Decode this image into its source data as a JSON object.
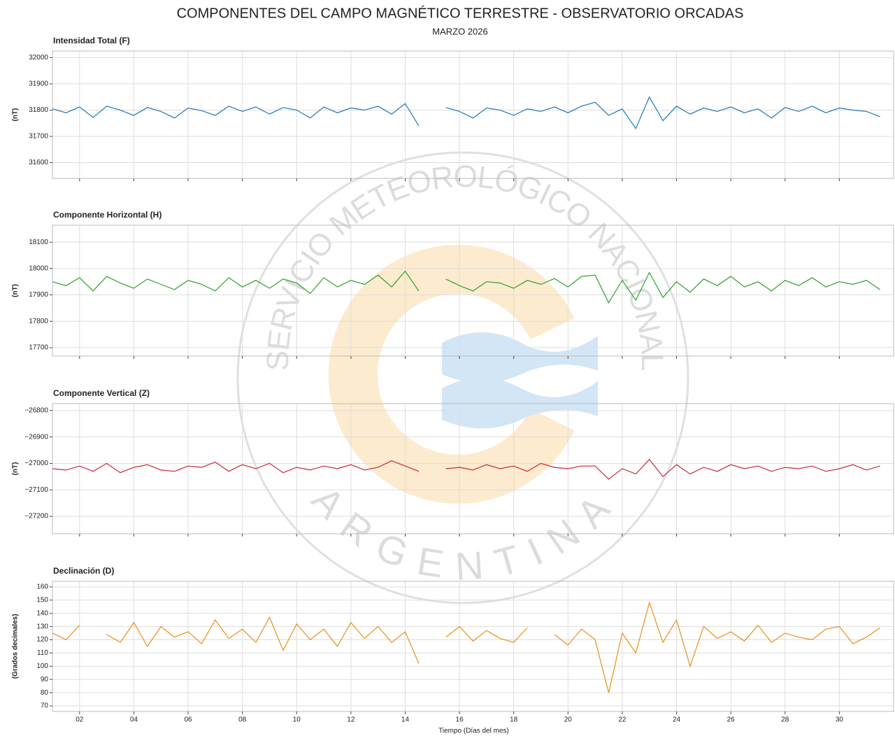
{
  "figure": {
    "title": "COMPONENTES DEL CAMPO MAGNÉTICO TERRESTRE - OBSERVATORIO ORCADAS",
    "subtitle": "MARZO 2026"
  },
  "watermark": {
    "top": "SERVICIO METEOROLÓGICO NACIONAL",
    "bottom": "ARGENTINA"
  },
  "chart_data": [
    {
      "type": "line",
      "title": "Intensidad Total (F)",
      "ylabel": "(nT)",
      "color": "#1f77b4",
      "grid": true,
      "x": [
        1,
        1.5,
        2,
        2.5,
        3,
        3.5,
        4,
        4.5,
        5,
        5.5,
        6,
        6.5,
        7,
        7.5,
        8,
        8.5,
        9,
        9.5,
        10,
        10.5,
        11,
        11.5,
        12,
        12.5,
        13,
        13.5,
        14,
        14.5,
        15,
        15.5,
        16,
        16.5,
        17,
        17.5,
        18,
        18.5,
        19,
        19.5,
        20,
        20.5,
        21,
        21.5,
        22,
        22.5,
        23,
        23.5,
        24,
        24.5,
        25,
        25.5,
        26,
        26.5,
        27,
        27.5,
        28,
        28.5,
        29,
        29.5,
        30,
        30.5,
        31,
        31.5
      ],
      "values": [
        31805,
        31790,
        31812,
        31772,
        31815,
        31800,
        31780,
        31810,
        31795,
        31770,
        31808,
        31798,
        31780,
        31815,
        31795,
        31812,
        31785,
        31810,
        31800,
        31770,
        31812,
        31790,
        31808,
        31800,
        31815,
        31785,
        31825,
        31740,
        null,
        31810,
        31795,
        31770,
        31808,
        31800,
        31780,
        31805,
        31795,
        31812,
        31790,
        31815,
        31830,
        31780,
        31805,
        31730,
        31850,
        31760,
        31815,
        31785,
        31808,
        31795,
        31812,
        31790,
        31805,
        31770,
        31810,
        31795,
        31815,
        31790,
        31808,
        31800,
        31795,
        31775
      ],
      "xlim": [
        1,
        32
      ],
      "ylim": [
        31540,
        32025
      ],
      "yticks": [
        31600,
        31700,
        31800,
        31900,
        32000
      ]
    },
    {
      "type": "line",
      "title": "Componente Horizontal (H)",
      "ylabel": "(nT)",
      "color": "#2ca02c",
      "grid": true,
      "x": [
        1,
        1.5,
        2,
        2.5,
        3,
        3.5,
        4,
        4.5,
        5,
        5.5,
        6,
        6.5,
        7,
        7.5,
        8,
        8.5,
        9,
        9.5,
        10,
        10.5,
        11,
        11.5,
        12,
        12.5,
        13,
        13.5,
        14,
        14.5,
        15,
        15.5,
        16,
        16.5,
        17,
        17.5,
        18,
        18.5,
        19,
        19.5,
        20,
        20.5,
        21,
        21.5,
        22,
        22.5,
        23,
        23.5,
        24,
        24.5,
        25,
        25.5,
        26,
        26.5,
        27,
        27.5,
        28,
        28.5,
        29,
        29.5,
        30,
        30.5,
        31,
        31.5
      ],
      "values": [
        17950,
        17935,
        17965,
        17915,
        17970,
        17945,
        17925,
        17960,
        17940,
        17920,
        17955,
        17940,
        17915,
        17965,
        17930,
        17955,
        17925,
        17960,
        17945,
        17905,
        17965,
        17930,
        17955,
        17940,
        17975,
        17930,
        17990,
        17915,
        null,
        17960,
        17935,
        17915,
        17950,
        17945,
        17925,
        17955,
        17940,
        17962,
        17930,
        17970,
        17975,
        17870,
        17955,
        17880,
        17985,
        17890,
        17950,
        17910,
        17960,
        17935,
        17970,
        17930,
        17950,
        17915,
        17955,
        17935,
        17965,
        17930,
        17950,
        17940,
        17955,
        17920
      ],
      "xlim": [
        1,
        32
      ],
      "ylim": [
        17668,
        18164
      ],
      "yticks": [
        17700,
        17800,
        17900,
        18000,
        18100
      ]
    },
    {
      "type": "line",
      "title": "Componente Vertical (Z)",
      "ylabel": "(nT)",
      "color": "#c8283c",
      "grid": true,
      "x": [
        1,
        1.5,
        2,
        2.5,
        3,
        3.5,
        4,
        4.5,
        5,
        5.5,
        6,
        6.5,
        7,
        7.5,
        8,
        8.5,
        9,
        9.5,
        10,
        10.5,
        11,
        11.5,
        12,
        12.5,
        13,
        13.5,
        14,
        14.5,
        15,
        15.5,
        16,
        16.5,
        17,
        17.5,
        18,
        18.5,
        19,
        19.5,
        20,
        20.5,
        21,
        21.5,
        22,
        22.5,
        23,
        23.5,
        24,
        24.5,
        25,
        25.5,
        26,
        26.5,
        27,
        27.5,
        28,
        28.5,
        29,
        29.5,
        30,
        30.5,
        31,
        31.5
      ],
      "values": [
        -27020,
        -27025,
        -27010,
        -27030,
        -27000,
        -27035,
        -27015,
        -27005,
        -27025,
        -27030,
        -27010,
        -27015,
        -26995,
        -27030,
        -27005,
        -27020,
        -27000,
        -27035,
        -27015,
        -27025,
        -27010,
        -27020,
        -27005,
        -27025,
        -27015,
        -26990,
        -27010,
        -27030,
        null,
        -27020,
        -27015,
        -27025,
        -27005,
        -27020,
        -27010,
        -27030,
        -27000,
        -27015,
        -27020,
        -27010,
        -27010,
        -27060,
        -27020,
        -27040,
        -26985,
        -27050,
        -27005,
        -27040,
        -27015,
        -27030,
        -27005,
        -27020,
        -27010,
        -27030,
        -27015,
        -27020,
        -27010,
        -27030,
        -27020,
        -27005,
        -27025,
        -27010
      ],
      "xlim": [
        1,
        32
      ],
      "ylim": [
        -27266,
        -26774
      ],
      "yticks": [
        {
          "value": -27200,
          "label": "−27200"
        },
        {
          "value": -27100,
          "label": "−27100"
        },
        {
          "value": -27000,
          "label": "−27000"
        },
        {
          "value": -26900,
          "label": "−26900"
        },
        {
          "value": -26800,
          "label": "−26800"
        }
      ]
    },
    {
      "type": "line",
      "title": "Declinación (D)",
      "ylabel": "(Grados decimales)",
      "xlabel": "Tiempo (Días del mes)",
      "color": "#e8901a",
      "grid": true,
      "x": [
        1,
        1.5,
        2,
        2.5,
        3,
        3.5,
        4,
        4.5,
        5,
        5.5,
        6,
        6.5,
        7,
        7.5,
        8,
        8.5,
        9,
        9.5,
        10,
        10.5,
        11,
        11.5,
        12,
        12.5,
        13,
        13.5,
        14,
        14.5,
        15,
        15.5,
        16,
        16.5,
        17,
        17.5,
        18,
        18.5,
        19,
        19.5,
        20,
        20.5,
        21,
        21.5,
        22,
        22.5,
        23,
        23.5,
        24,
        24.5,
        25,
        25.5,
        26,
        26.5,
        27,
        27.5,
        28,
        28.5,
        29,
        29.5,
        30,
        30.5,
        31,
        31.5
      ],
      "values": [
        125,
        120,
        131,
        null,
        124,
        118,
        133,
        115,
        130,
        122,
        126,
        117,
        135,
        121,
        128,
        118,
        137,
        112,
        132,
        120,
        128,
        115,
        133,
        121,
        130,
        118,
        126,
        102,
        null,
        122,
        130,
        119,
        127,
        121,
        118,
        129,
        null,
        124,
        116,
        128,
        120,
        80,
        125,
        110,
        148,
        118,
        135,
        100,
        130,
        121,
        126,
        119,
        131,
        118,
        125,
        122,
        120,
        128,
        130,
        117,
        122,
        129
      ],
      "xlim": [
        1,
        32
      ],
      "ylim": [
        65.8,
        164.2
      ],
      "yticks": [
        70,
        80,
        90,
        100,
        110,
        120,
        130,
        140,
        150,
        160
      ],
      "xticks": [
        {
          "value": 2,
          "label": "02"
        },
        {
          "value": 4,
          "label": "04"
        },
        {
          "value": 6,
          "label": "06"
        },
        {
          "value": 8,
          "label": "08"
        },
        {
          "value": 10,
          "label": "10"
        },
        {
          "value": 12,
          "label": "12"
        },
        {
          "value": 14,
          "label": "14"
        },
        {
          "value": 16,
          "label": "16"
        },
        {
          "value": 18,
          "label": "18"
        },
        {
          "value": 20,
          "label": "20"
        },
        {
          "value": 22,
          "label": "22"
        },
        {
          "value": 24,
          "label": "24"
        },
        {
          "value": 26,
          "label": "26"
        },
        {
          "value": 28,
          "label": "28"
        },
        {
          "value": 30,
          "label": "30"
        }
      ]
    }
  ]
}
